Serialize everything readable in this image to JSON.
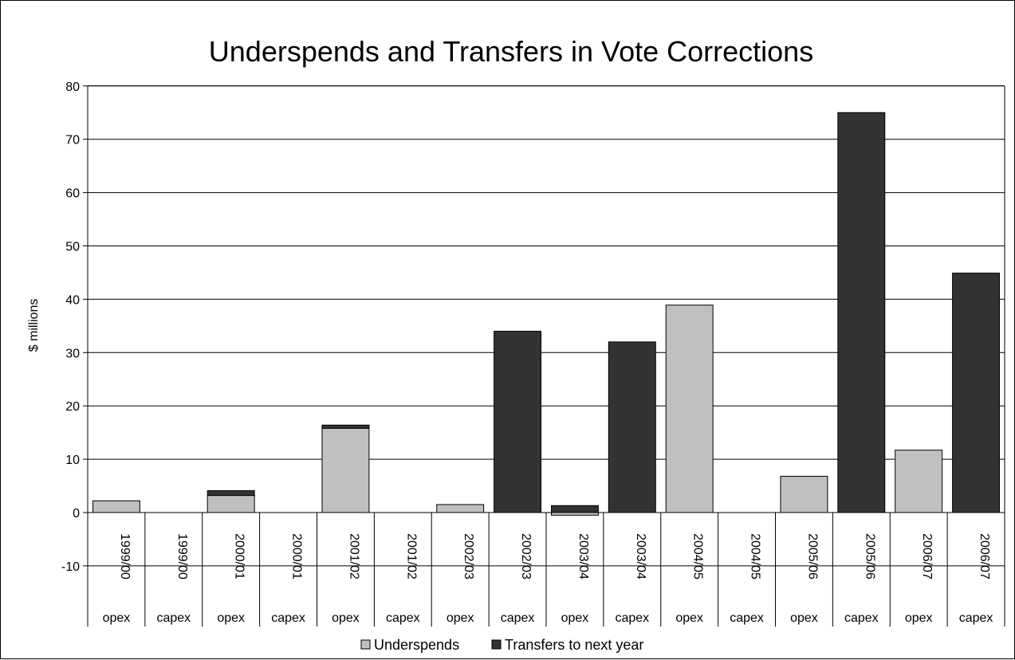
{
  "chart_data": {
    "type": "bar",
    "stacked": true,
    "title": "Underspends and Transfers in Vote Corrections",
    "xlabel": "",
    "ylabel": "$ millions",
    "ylim": [
      -10,
      80
    ],
    "ytick_step": 10,
    "grid": true,
    "legend_position": "bottom",
    "categories": [
      {
        "year": "1999/00",
        "type": "opex"
      },
      {
        "year": "1999/00",
        "type": "capex"
      },
      {
        "year": "2000/01",
        "type": "opex"
      },
      {
        "year": "2000/01",
        "type": "capex"
      },
      {
        "year": "2001/02",
        "type": "opex"
      },
      {
        "year": "2001/02",
        "type": "capex"
      },
      {
        "year": "2002/03",
        "type": "opex"
      },
      {
        "year": "2002/03",
        "type": "capex"
      },
      {
        "year": "2003/04",
        "type": "opex"
      },
      {
        "year": "2003/04",
        "type": "capex"
      },
      {
        "year": "2004/05",
        "type": "opex"
      },
      {
        "year": "2004/05",
        "type": "capex"
      },
      {
        "year": "2005/06",
        "type": "opex"
      },
      {
        "year": "2005/06",
        "type": "capex"
      },
      {
        "year": "2006/07",
        "type": "opex"
      },
      {
        "year": "2006/07",
        "type": "capex"
      }
    ],
    "series": [
      {
        "name": "Underspends",
        "color": "#c0c0c0",
        "values": [
          2.2,
          0,
          3.2,
          0,
          15.8,
          0,
          1.5,
          0,
          -0.5,
          0,
          38.9,
          0,
          6.8,
          0,
          11.7,
          0
        ]
      },
      {
        "name": "Transfers to next year",
        "color": "#333333",
        "values": [
          0,
          0,
          0.9,
          0,
          0.6,
          0,
          0,
          34.0,
          1.3,
          32.0,
          0,
          0,
          0,
          75.0,
          0,
          44.9
        ]
      }
    ]
  }
}
